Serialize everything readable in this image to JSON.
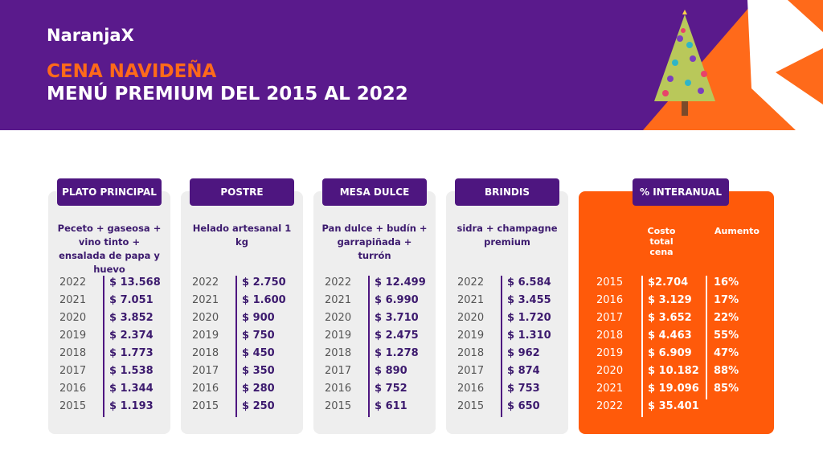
{
  "header": {
    "brand": "NaranjaX",
    "title": "CENA NAVIDEÑA",
    "subtitle": "MENÚ PREMIUM DEL 2015 AL 2022"
  },
  "categories": [
    {
      "label": "PLATO PRINCIPAL",
      "description": "Peceto + gaseosa + vino tinto + ensalada de papa y huevo",
      "rows": [
        [
          "2022",
          "$ 13.568"
        ],
        [
          "2021",
          "$ 7.051"
        ],
        [
          "2020",
          "$ 3.852"
        ],
        [
          "2019",
          "$ 2.374"
        ],
        [
          "2018",
          "$ 1.773"
        ],
        [
          "2017",
          "$ 1.538"
        ],
        [
          "2016",
          "$ 1.344"
        ],
        [
          "2015",
          "$ 1.193"
        ]
      ]
    },
    {
      "label": "POSTRE",
      "description": "Helado artesanal 1 kg",
      "rows": [
        [
          "2022",
          "$ 2.750"
        ],
        [
          "2021",
          "$ 1.600"
        ],
        [
          "2020",
          "$ 900"
        ],
        [
          "2019",
          "$ 750"
        ],
        [
          "2018",
          "$ 450"
        ],
        [
          "2017",
          "$ 350"
        ],
        [
          "2016",
          "$ 280"
        ],
        [
          "2015",
          "$ 250"
        ]
      ]
    },
    {
      "label": "MESA DULCE",
      "description": "Pan dulce + budín + garrapiñada + turrón",
      "rows": [
        [
          "2022",
          "$ 12.499"
        ],
        [
          "2021",
          "$ 6.990"
        ],
        [
          "2020",
          "$ 3.710"
        ],
        [
          "2019",
          "$ 2.475"
        ],
        [
          "2018",
          "$ 1.278"
        ],
        [
          "2017",
          "$ 890"
        ],
        [
          "2016",
          "$ 752"
        ],
        [
          "2015",
          "$ 611"
        ]
      ]
    },
    {
      "label": "BRINDIS",
      "description": "sidra + champagne premium",
      "rows": [
        [
          "2022",
          "$ 6.584"
        ],
        [
          "2021",
          "$ 3.455"
        ],
        [
          "2020",
          "$ 1.720"
        ],
        [
          "2019",
          "$ 1.310"
        ],
        [
          "2018",
          "$ 962"
        ],
        [
          "2017",
          "$ 874"
        ],
        [
          "2016",
          "$ 753"
        ],
        [
          "2015",
          "$ 650"
        ]
      ]
    }
  ],
  "summary": {
    "label": "% INTERANUAL",
    "headers": [
      "Costo total cena",
      "Aumento"
    ],
    "rows": [
      [
        "2015",
        "$2.704",
        "16%"
      ],
      [
        "2016",
        "$ 3.129",
        "17%"
      ],
      [
        "2017",
        "$ 3.652",
        "22%"
      ],
      [
        "2018",
        "$ 4.463",
        "55%"
      ],
      [
        "2019",
        "$ 6.909",
        "47%"
      ],
      [
        "2020",
        "$ 10.182",
        "88%"
      ],
      [
        "2021",
        "$ 19.096",
        "85%"
      ],
      [
        "2022",
        "$ 35.401"
      ]
    ]
  }
}
